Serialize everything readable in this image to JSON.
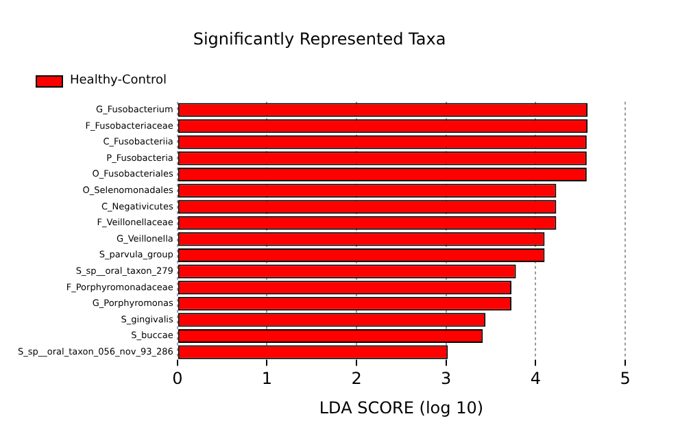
{
  "chart_data": {
    "type": "bar",
    "orientation": "horizontal",
    "title": "Significantly Represented Taxa",
    "xlabel": "LDA SCORE (log 10)",
    "categories": [
      "G_Fusobacterium",
      "F_Fusobacteriaceae",
      "C_Fusobacteriia",
      "P_Fusobacteria",
      "O_Fusobacteriales",
      "O_Selenomonadales",
      "C_Negativicutes",
      "F_Veillonellaceae",
      "G_Veillonella",
      "S_parvula_group",
      "S_sp__oral_taxon_279",
      "F_Porphyromonadaceae",
      "G_Porphyromonas",
      "S_gingivalis",
      "S_buccae",
      "S_sp__oral_taxon_056_nov_93_286"
    ],
    "series": [
      {
        "name": "Healthy-Control",
        "color": "#ff0000",
        "values": [
          4.58,
          4.58,
          4.57,
          4.57,
          4.57,
          4.23,
          4.23,
          4.23,
          4.1,
          4.1,
          3.78,
          3.73,
          3.73,
          3.44,
          3.41,
          3.02
        ]
      }
    ],
    "xlim": [
      0,
      5
    ],
    "xticks": [
      0,
      1,
      2,
      3,
      4,
      5
    ],
    "grid": "x",
    "legend": "top left"
  }
}
